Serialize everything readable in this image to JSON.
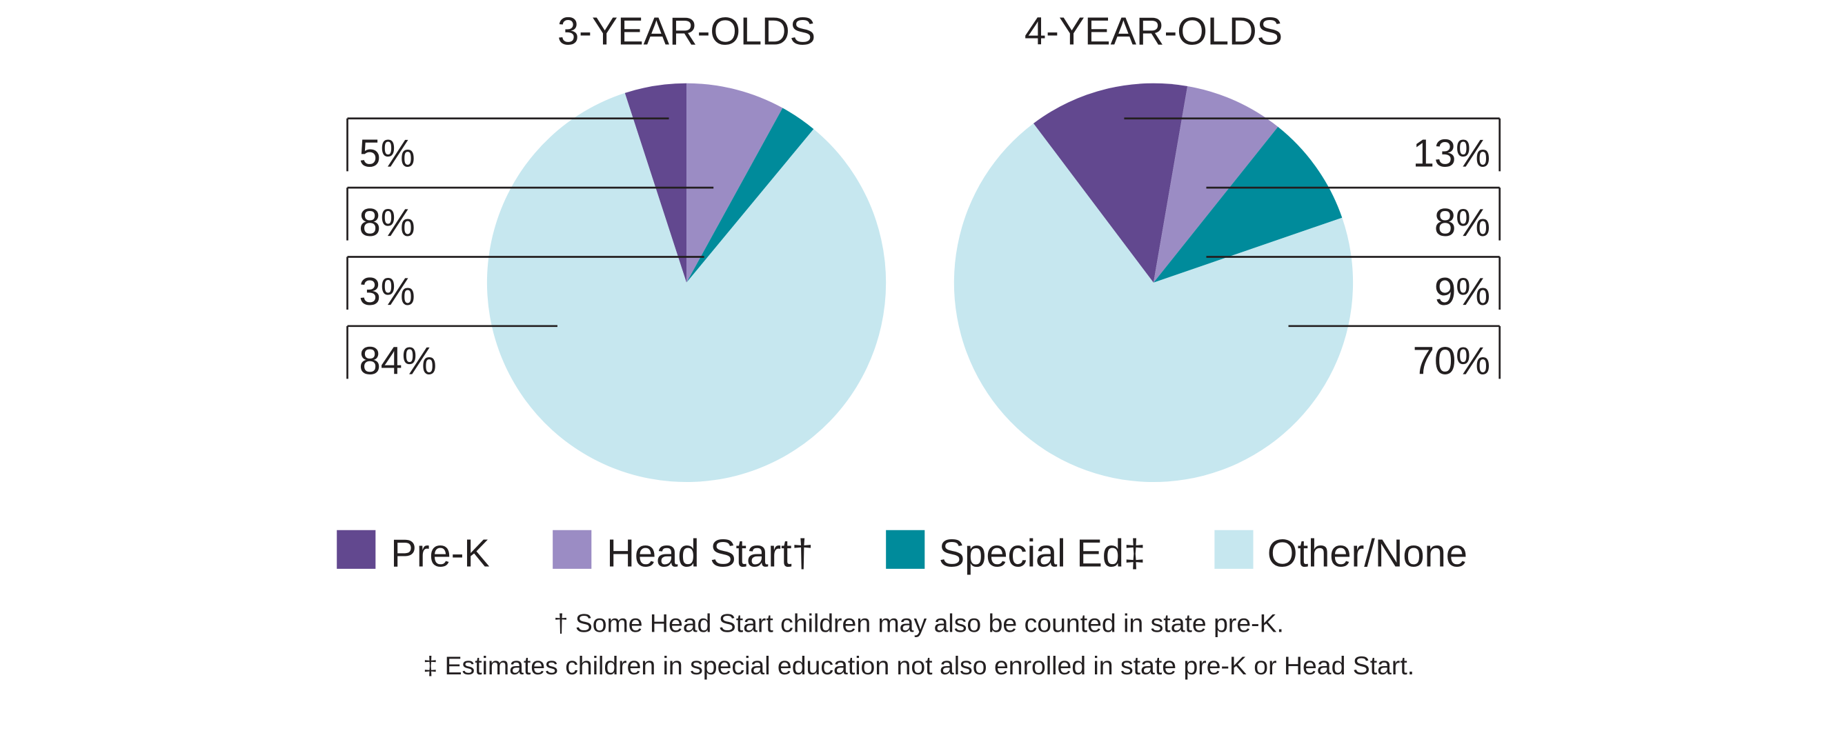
{
  "chart_data": [
    {
      "type": "pie",
      "title": "3-YEAR-OLDS",
      "categories": [
        "Pre-K",
        "Head Start",
        "Special Ed",
        "Other/None"
      ],
      "values": [
        5,
        8,
        3,
        84
      ],
      "labels": [
        "5%",
        "8%",
        "3%",
        "84%"
      ]
    },
    {
      "type": "pie",
      "title": "4-YEAR-OLDS",
      "categories": [
        "Pre-K",
        "Head Start",
        "Special Ed",
        "Other/None"
      ],
      "values": [
        13,
        8,
        9,
        70
      ],
      "labels": [
        "13%",
        "8%",
        "9%",
        "70%"
      ]
    }
  ],
  "legend": [
    {
      "label": "Pre-K",
      "color": "#62488f"
    },
    {
      "label": "Head Start†",
      "color": "#9b8cc4"
    },
    {
      "label": "Special Ed‡",
      "color": "#008b9b"
    },
    {
      "label": "Other/None",
      "color": "#c6e7ef"
    }
  ],
  "footnotes": [
    "† Some Head Start children may also be counted in state pre-K.",
    "‡ Estimates children in special education not also enrolled in state pre-K or Head Start."
  ]
}
